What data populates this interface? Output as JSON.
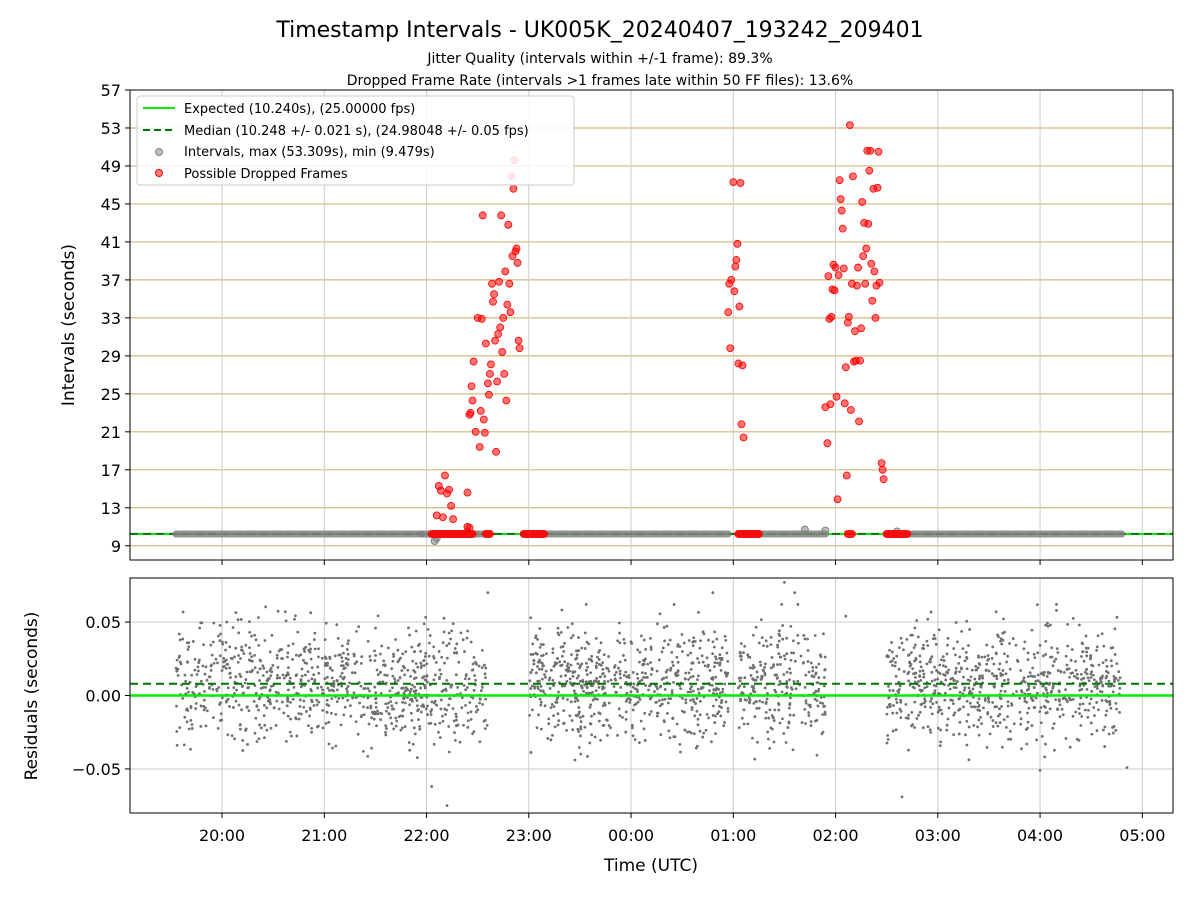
{
  "chart_data": [
    {
      "type": "scatter",
      "title": "Timestamp Intervals - UK005K_20240407_193242_209401",
      "subtitle_lines": [
        "Jitter Quality (intervals within +/-1 frame): 89.3%",
        "Dropped Frame Rate (intervals >1 frames late within 50 FF files): 13.6%"
      ],
      "xlabel": "",
      "ylabel": "Intervals (seconds)",
      "x_unit": "hours since 00:00 UTC (negative = previous day)",
      "xlim": [
        -4.9,
        5.3
      ],
      "ylim": [
        7.5,
        57
      ],
      "yticks": [
        9,
        13,
        17,
        21,
        25,
        29,
        33,
        37,
        41,
        45,
        49,
        53,
        57
      ],
      "xticks": [
        -4,
        -3,
        -2,
        -1,
        0,
        1,
        2,
        3,
        4,
        5
      ],
      "xtick_labels": [
        "20:00",
        "21:00",
        "22:00",
        "23:00",
        "00:00",
        "01:00",
        "02:00",
        "03:00",
        "04:00",
        "05:00"
      ],
      "grid": true,
      "frame_gridlines": "horizontal lines every 4 s (tan)",
      "legend_position": "top-left",
      "legend": [
        "Expected (10.240s), (25.00000 fps)",
        "Median (10.248 +/- 0.021 s), (24.98048 +/- 0.05 fps)",
        "Intervals, max (53.309s), min (9.479s)",
        "Possible Dropped Frames"
      ],
      "expected_line": {
        "value": 10.24,
        "color": "#00ee00",
        "style": "solid"
      },
      "median_line": {
        "value": 10.248,
        "color": "#007700",
        "style": "dashed"
      },
      "intervals_segments": [
        {
          "x_start": -4.45,
          "x_end": -2.05,
          "y": 10.24
        },
        {
          "x_start": -2.05,
          "x_end": -1.4,
          "y": 10.24
        },
        {
          "x_start": -1.05,
          "x_end": 0.95,
          "y": 10.24
        },
        {
          "x_start": 1.05,
          "x_end": 1.9,
          "y": 10.24
        },
        {
          "x_start": 2.5,
          "x_end": 4.8,
          "y": 10.24
        }
      ],
      "interval_outliers": [
        [
          -1.92,
          9.5
        ],
        [
          -1.9,
          9.8
        ],
        [
          -1.6,
          10.5
        ],
        [
          1.7,
          10.7
        ],
        [
          1.9,
          10.6
        ],
        [
          2.6,
          10.5
        ]
      ],
      "dropped_frames": [
        [
          -1.88,
          15.3
        ],
        [
          -1.86,
          14.8
        ],
        [
          -1.84,
          12.0
        ],
        [
          -1.82,
          16.4
        ],
        [
          -1.8,
          14.5
        ],
        [
          -1.78,
          14.9
        ],
        [
          -1.76,
          13.2
        ],
        [
          -1.74,
          11.8
        ],
        [
          -1.9,
          12.2
        ],
        [
          -1.6,
          14.6
        ],
        [
          -1.58,
          22.8
        ],
        [
          -1.57,
          23.0
        ],
        [
          -1.56,
          25.8
        ],
        [
          -1.55,
          24.3
        ],
        [
          -1.54,
          28.4
        ],
        [
          -1.52,
          21.0
        ],
        [
          -1.5,
          33.0
        ],
        [
          -1.48,
          19.4
        ],
        [
          -1.47,
          23.2
        ],
        [
          -1.46,
          32.9
        ],
        [
          -1.45,
          43.8
        ],
        [
          -1.44,
          22.3
        ],
        [
          -1.43,
          20.9
        ],
        [
          -1.42,
          30.3
        ],
        [
          -1.4,
          26.1
        ],
        [
          -1.39,
          24.9
        ],
        [
          -1.38,
          27.1
        ],
        [
          -1.37,
          28.1
        ],
        [
          -1.36,
          36.6
        ],
        [
          -1.35,
          34.7
        ],
        [
          -1.34,
          35.5
        ],
        [
          -1.33,
          30.6
        ],
        [
          -1.32,
          18.9
        ],
        [
          -1.31,
          26.3
        ],
        [
          -1.3,
          31.3
        ],
        [
          -1.29,
          36.8
        ],
        [
          -1.28,
          32.0
        ],
        [
          -1.27,
          43.8
        ],
        [
          -1.26,
          29.4
        ],
        [
          -1.25,
          33.0
        ],
        [
          -1.24,
          27.1
        ],
        [
          -1.23,
          37.9
        ],
        [
          -1.22,
          24.3
        ],
        [
          -1.21,
          34.4
        ],
        [
          -1.2,
          42.8
        ],
        [
          -1.19,
          36.6
        ],
        [
          -1.18,
          33.6
        ],
        [
          -1.17,
          47.9
        ],
        [
          -1.16,
          39.5
        ],
        [
          -1.15,
          46.6
        ],
        [
          -1.14,
          49.6
        ],
        [
          -1.13,
          40.0
        ],
        [
          -1.12,
          40.3
        ],
        [
          -1.11,
          38.8
        ],
        [
          -1.1,
          30.6
        ],
        [
          -1.09,
          29.8
        ],
        [
          -1.6,
          11.0
        ],
        [
          -1.58,
          10.9
        ],
        [
          0.95,
          33.6
        ],
        [
          0.96,
          36.6
        ],
        [
          0.97,
          29.8
        ],
        [
          0.98,
          37.0
        ],
        [
          1.0,
          47.3
        ],
        [
          1.01,
          35.8
        ],
        [
          1.02,
          38.4
        ],
        [
          1.03,
          39.1
        ],
        [
          1.04,
          40.8
        ],
        [
          1.05,
          28.2
        ],
        [
          1.06,
          34.2
        ],
        [
          1.07,
          47.2
        ],
        [
          1.08,
          21.8
        ],
        [
          1.09,
          28.0
        ],
        [
          1.1,
          20.4
        ],
        [
          1.9,
          23.6
        ],
        [
          1.92,
          19.8
        ],
        [
          1.93,
          37.4
        ],
        [
          1.94,
          32.9
        ],
        [
          1.95,
          23.9
        ],
        [
          1.96,
          33.1
        ],
        [
          1.97,
          36.0
        ],
        [
          1.98,
          38.6
        ],
        [
          1.99,
          35.9
        ],
        [
          2.0,
          38.3
        ],
        [
          2.01,
          24.7
        ],
        [
          2.02,
          13.9
        ],
        [
          2.03,
          37.5
        ],
        [
          2.04,
          47.5
        ],
        [
          2.05,
          45.5
        ],
        [
          2.06,
          44.3
        ],
        [
          2.07,
          42.4
        ],
        [
          2.08,
          38.2
        ],
        [
          2.09,
          24.0
        ],
        [
          2.1,
          27.8
        ],
        [
          2.11,
          16.4
        ],
        [
          2.12,
          32.5
        ],
        [
          2.13,
          33.1
        ],
        [
          2.14,
          53.3
        ],
        [
          2.15,
          23.3
        ],
        [
          2.16,
          36.6
        ],
        [
          2.17,
          47.9
        ],
        [
          2.18,
          28.4
        ],
        [
          2.19,
          31.6
        ],
        [
          2.2,
          28.5
        ],
        [
          2.21,
          36.4
        ],
        [
          2.22,
          38.3
        ],
        [
          2.23,
          22.1
        ],
        [
          2.24,
          28.5
        ],
        [
          2.25,
          31.9
        ],
        [
          2.26,
          45.2
        ],
        [
          2.27,
          39.5
        ],
        [
          2.28,
          43.0
        ],
        [
          2.29,
          36.6
        ],
        [
          2.3,
          40.3
        ],
        [
          2.31,
          50.6
        ],
        [
          2.32,
          42.9
        ],
        [
          2.33,
          48.5
        ],
        [
          2.34,
          50.6
        ],
        [
          2.35,
          38.7
        ],
        [
          2.36,
          34.8
        ],
        [
          2.37,
          46.6
        ],
        [
          2.38,
          37.9
        ],
        [
          2.39,
          33.0
        ],
        [
          2.4,
          36.4
        ],
        [
          2.41,
          46.7
        ],
        [
          2.42,
          50.5
        ],
        [
          2.43,
          36.7
        ],
        [
          2.45,
          17.7
        ],
        [
          2.46,
          17.0
        ],
        [
          2.47,
          16.0
        ]
      ],
      "dropped_frame_runs": [
        {
          "x_start": -1.95,
          "x_end": -1.55,
          "y": 10.24
        },
        {
          "x_start": -1.42,
          "x_end": -1.38,
          "y": 10.24
        },
        {
          "x_start": -1.05,
          "x_end": -0.85,
          "y": 10.24
        },
        {
          "x_start": 1.05,
          "x_end": 1.25,
          "y": 10.24
        },
        {
          "x_start": 2.12,
          "x_end": 2.16,
          "y": 10.24
        },
        {
          "x_start": 2.5,
          "x_end": 2.7,
          "y": 10.24
        }
      ]
    },
    {
      "type": "scatter",
      "title": "",
      "xlabel": "Time (UTC)",
      "ylabel": "Residuals (seconds)",
      "ylim": [
        -0.08,
        0.08
      ],
      "yticks": [
        -0.05,
        0.0,
        0.05
      ],
      "ytick_labels": [
        "−0.05",
        "0.00",
        "0.05"
      ],
      "xticks": [
        -4,
        -3,
        -2,
        -1,
        0,
        1,
        2,
        3,
        4,
        5
      ],
      "xtick_labels": [
        "20:00",
        "21:00",
        "22:00",
        "23:00",
        "00:00",
        "01:00",
        "02:00",
        "03:00",
        "04:00",
        "05:00"
      ],
      "grid": true,
      "expected_line": {
        "value": 0.0,
        "color": "#00ee00",
        "style": "solid"
      },
      "median_line": {
        "value": 0.008,
        "color": "#007700",
        "style": "dashed"
      },
      "residual_segments": [
        {
          "x_start": -4.45,
          "x_end": -1.95,
          "points": 760
        },
        {
          "x_start": -1.95,
          "x_end": -1.6,
          "points": 90
        },
        {
          "x_start": -1.6,
          "x_end": -1.4,
          "points": 50
        },
        {
          "x_start": -1.0,
          "x_end": 0.95,
          "points": 650
        },
        {
          "x_start": 1.05,
          "x_end": 1.9,
          "points": 260
        },
        {
          "x_start": 2.5,
          "x_end": 4.8,
          "points": 720
        }
      ],
      "residual_spread_sd": 0.02,
      "residual_notable_points": [
        [
          -1.95,
          -0.062
        ],
        [
          -1.8,
          -0.075
        ],
        [
          -1.4,
          0.07
        ],
        [
          0.8,
          0.07
        ],
        [
          1.5,
          0.077
        ],
        [
          1.6,
          0.07
        ],
        [
          2.1,
          0.054
        ],
        [
          2.65,
          -0.069
        ],
        [
          4.0,
          -0.051
        ],
        [
          4.85,
          -0.049
        ]
      ]
    }
  ],
  "colors": {
    "expected": "#00ee00",
    "median": "#007700",
    "intervals": "#808080",
    "dropped": "#ff0000",
    "frame_grid": "#d4b97a",
    "grid": "#cccccc"
  }
}
